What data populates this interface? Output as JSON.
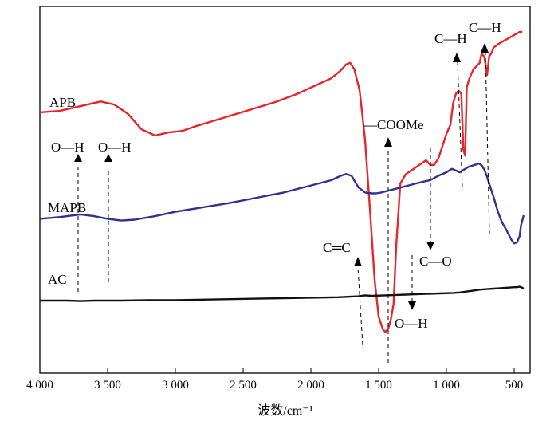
{
  "chart_data": {
    "type": "line",
    "title": "",
    "xlabel": "波数/cm⁻¹",
    "ylabel": "",
    "xlim": [
      4000,
      390
    ],
    "x_reversed": true,
    "ylim": [
      0,
      100
    ],
    "x_ticks": [
      4000,
      3500,
      3000,
      2500,
      2000,
      1500,
      1000,
      500
    ],
    "x_tick_labels": [
      "4 000",
      "3 500",
      "3 000",
      "2 500",
      "2 000",
      "1 500",
      "1 000",
      "500"
    ],
    "grid": false,
    "legend": "none",
    "series": [
      {
        "name": "APB",
        "color": "#e8262a",
        "x": [
          4000,
          3850,
          3700,
          3550,
          3450,
          3350,
          3250,
          3150,
          3050,
          2950,
          2850,
          2700,
          2550,
          2400,
          2250,
          2100,
          1950,
          1850,
          1780,
          1740,
          1710,
          1680,
          1640,
          1600,
          1560,
          1530,
          1500,
          1470,
          1450,
          1430,
          1410,
          1390,
          1370,
          1340,
          1300,
          1250,
          1200,
          1150,
          1120,
          1090,
          1060,
          1030,
          1000,
          970,
          950,
          930,
          910,
          890,
          875,
          862,
          850,
          830,
          800,
          775,
          755,
          740,
          720,
          700,
          685,
          670,
          650,
          620,
          580,
          540,
          500,
          460,
          440
        ],
        "y": [
          74,
          74.5,
          76,
          77.5,
          76.5,
          73.5,
          68.5,
          66.5,
          67.5,
          68,
          69.5,
          71.5,
          73.5,
          75.5,
          77.5,
          80,
          83,
          85,
          87.5,
          89.5,
          90,
          88,
          81,
          65,
          40,
          20,
          8,
          4,
          3,
          4,
          7,
          12,
          31,
          51,
          54,
          55.5,
          57,
          58.5,
          57,
          57,
          59,
          63,
          67,
          70,
          77,
          80,
          81,
          80,
          62,
          60,
          82,
          85,
          88,
          89,
          90,
          93,
          92,
          86,
          92,
          93,
          95,
          96,
          97,
          98,
          99,
          100,
          100
        ]
      },
      {
        "name": "MAPB",
        "color": "#2e3192",
        "x": [
          4000,
          3850,
          3750,
          3700,
          3600,
          3500,
          3400,
          3300,
          3150,
          3000,
          2800,
          2600,
          2400,
          2200,
          2000,
          1850,
          1780,
          1740,
          1700,
          1650,
          1600,
          1550,
          1520,
          1480,
          1430,
          1380,
          1330,
          1280,
          1230,
          1180,
          1120,
          1060,
          1000,
          960,
          930,
          900,
          870,
          840,
          800,
          760,
          740,
          720,
          700,
          680,
          650,
          620,
          590,
          560,
          540,
          520,
          500,
          480,
          460,
          450,
          440,
          430
        ],
        "y": [
          48,
          49,
          50,
          50.5,
          49.5,
          48,
          47,
          47.5,
          49.5,
          52,
          54.5,
          57,
          60,
          63,
          67,
          70,
          72.5,
          73.5,
          72.5,
          66,
          63,
          62.5,
          62.5,
          63,
          64,
          65,
          66,
          67,
          68,
          69,
          70,
          72.5,
          74.5,
          76.5,
          75.5,
          74.5,
          76,
          77.5,
          78.5,
          79.5,
          78.5,
          76,
          72,
          67,
          60,
          52,
          46,
          42,
          39,
          36,
          34,
          34.5,
          38,
          44,
          47,
          50
        ]
      },
      {
        "name": "AC",
        "color": "#111111",
        "x": [
          4000,
          3800,
          3700,
          3600,
          3400,
          3200,
          3000,
          2800,
          2600,
          2400,
          2200,
          2000,
          1800,
          1650,
          1600,
          1550,
          1450,
          1350,
          1250,
          1150,
          1050,
          950,
          900,
          850,
          800,
          750,
          700,
          650,
          600,
          550,
          500,
          480,
          460,
          440,
          430
        ],
        "y": [
          27.5,
          27.5,
          27,
          27.5,
          27.5,
          28,
          28,
          28.5,
          29,
          29.5,
          30,
          30.5,
          31,
          32,
          33,
          32.5,
          33,
          33.5,
          34,
          34.5,
          35,
          35.5,
          36,
          37,
          38,
          39,
          39.5,
          40,
          40.5,
          41,
          41.5,
          41.5,
          42,
          41,
          40
        ]
      }
    ],
    "annotations": [
      {
        "text": "O—H",
        "x": 3720,
        "target": "APB"
      },
      {
        "text": "O—H",
        "x": 3490,
        "target": "APB"
      },
      {
        "text": "—COOMe",
        "x": 1430,
        "target": "APB"
      },
      {
        "text": "C—H",
        "x": 880,
        "target": "APB"
      },
      {
        "text": "C—H",
        "x": 700,
        "target": "APB"
      },
      {
        "text": "C═C",
        "x": 1610,
        "target": "AC"
      },
      {
        "text": "C—O",
        "x": 1120,
        "target": "AC"
      },
      {
        "text": "O—H",
        "x": 1250,
        "target": "AC"
      }
    ]
  }
}
